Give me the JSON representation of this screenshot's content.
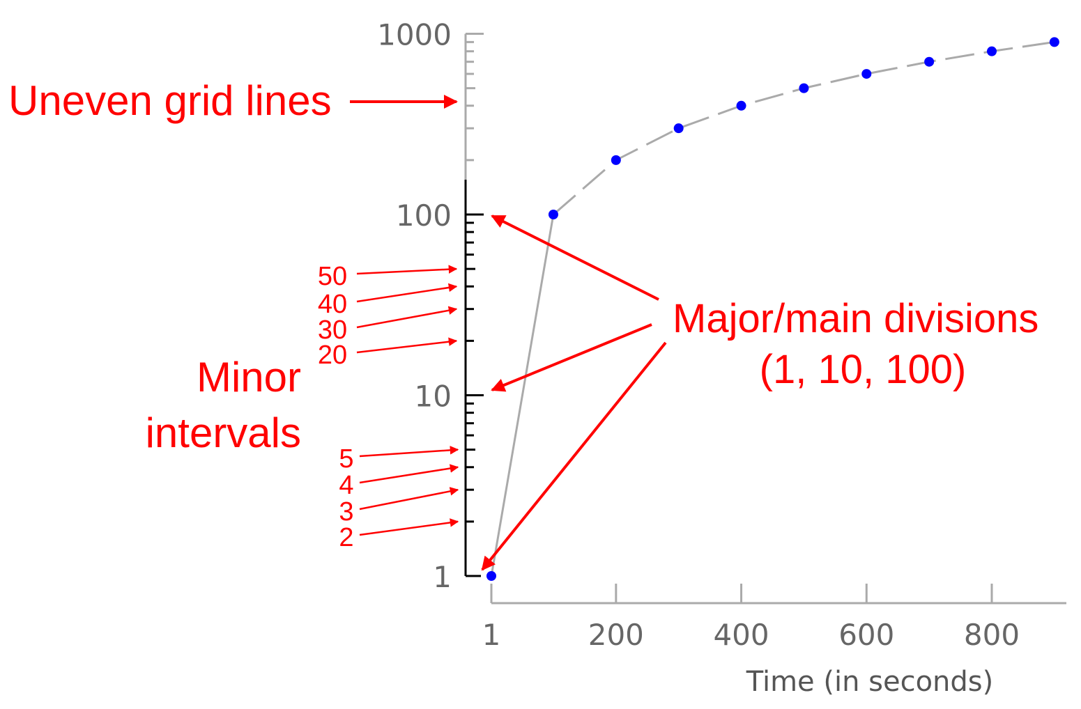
{
  "chart_data": {
    "type": "scatter",
    "title": "",
    "xlabel": "Time (in seconds)",
    "ylabel": "",
    "x_scale": "linear",
    "y_scale": "log",
    "xlim": [
      1,
      900
    ],
    "ylim": [
      1,
      1000
    ],
    "x_ticks": [
      1,
      200,
      400,
      600,
      800
    ],
    "x_tick_labels": [
      "1",
      "200",
      "400",
      "600",
      "800"
    ],
    "y_ticks": [
      1,
      10,
      100,
      1000
    ],
    "y_tick_labels": [
      "1",
      "10",
      "100",
      "1000"
    ],
    "grid": false,
    "point_color": "#0000ff",
    "line_color": "#aaaaaa",
    "series": [
      {
        "x": [
          1,
          100,
          200,
          300,
          400,
          500,
          600,
          700,
          800,
          900
        ],
        "y": [
          1,
          100,
          200,
          300,
          400,
          500,
          600,
          700,
          800,
          900
        ]
      }
    ]
  },
  "annotations": {
    "color": "#ff0000",
    "uneven_grid": "Uneven grid lines",
    "minor_line1": "Minor",
    "minor_line2": "intervals",
    "major_line1": "Major/main divisions",
    "major_line2": "(1, 10, 100)",
    "minor_upper": [
      "50",
      "40",
      "30",
      "20"
    ],
    "minor_lower": [
      "5",
      "4",
      "3",
      "2"
    ]
  }
}
